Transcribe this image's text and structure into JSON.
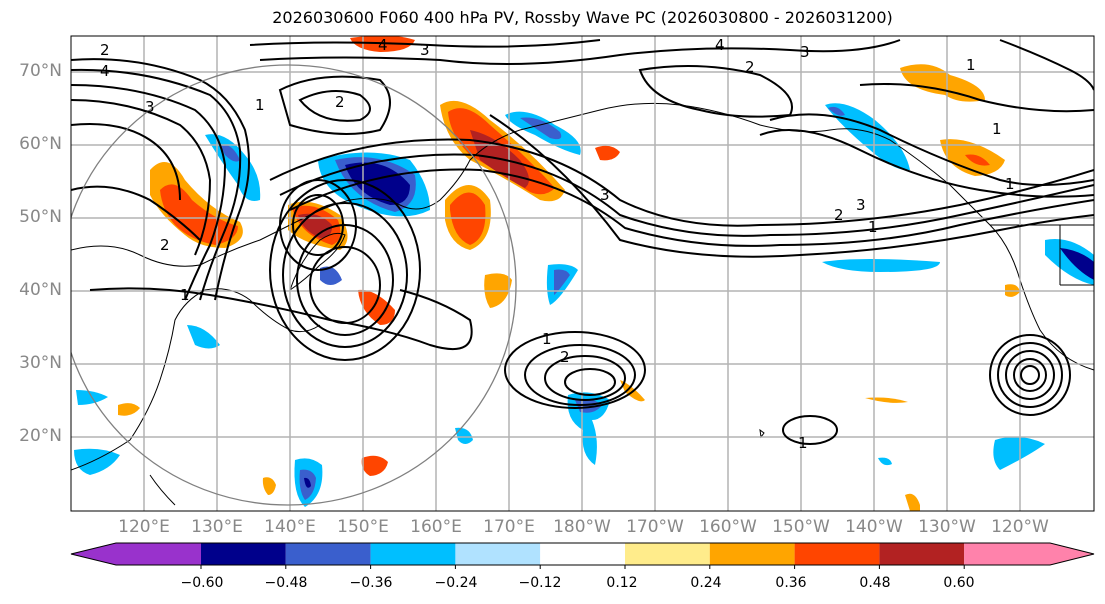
{
  "title": "2026030600 F060 400 hPa PV, Rossby Wave PC (2026030800 - 2026031200)",
  "map": {
    "projection": "PlateCarree",
    "lon_range": [
      110,
      -112
    ],
    "lat_range": [
      10,
      75
    ],
    "lat_labels": [
      "70°N",
      "60°N",
      "50°N",
      "40°N",
      "30°N",
      "20°N"
    ],
    "lat_values": [
      70,
      60,
      50,
      40,
      30,
      20
    ],
    "lon_labels": [
      "120°E",
      "130°E",
      "140°E",
      "150°E",
      "160°E",
      "170°E",
      "180°W",
      "170°W",
      "160°W",
      "150°W",
      "140°W",
      "130°W",
      "120°W"
    ],
    "contour_labels": [
      "4",
      "2",
      "3",
      "1",
      "2",
      "4",
      "3",
      "1",
      "2",
      "3",
      "4",
      "2",
      "3",
      "1",
      "1",
      "1",
      "2",
      "3",
      "1",
      "2",
      "1",
      "1"
    ]
  },
  "colorbar": {
    "ticks": [
      "−0.60",
      "−0.48",
      "−0.36",
      "−0.24",
      "−0.12",
      "0.12",
      "0.24",
      "0.36",
      "0.48",
      "0.60"
    ],
    "colors": [
      "#9932CC",
      "#00008B",
      "#3A5FCD",
      "#00BFFF",
      "#B0E2FF",
      "#FFFFFF",
      "#FFEC8B",
      "#FFA500",
      "#FF4500",
      "#B22222",
      "#FF82AB"
    ]
  },
  "chart_data": {
    "type": "heatmap",
    "title": "2026030600 F060 400 hPa PV, Rossby Wave PC (2026030800 - 2026031200)",
    "xlabel": "",
    "ylabel": "",
    "colorbar_levels": [
      -0.6,
      -0.48,
      -0.36,
      -0.24,
      -0.12,
      0.12,
      0.24,
      0.36,
      0.48,
      0.6
    ],
    "pv_contour_levels": [
      1,
      2,
      3,
      4
    ],
    "grid": true
  }
}
